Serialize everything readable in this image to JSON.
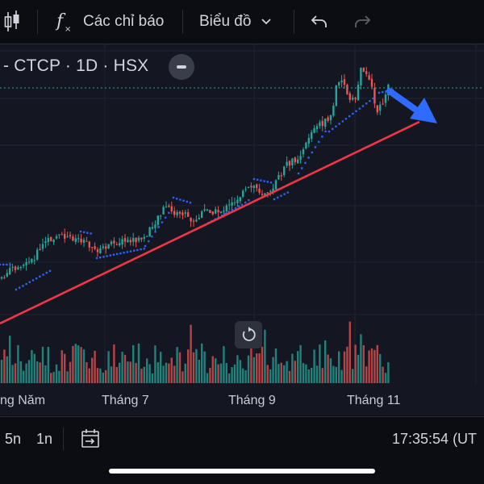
{
  "toolbar": {
    "indicators_label": "Các chỉ báo",
    "chart_type_label": "Biểu đồ",
    "icons": [
      "candlestick-icon",
      "function-icon",
      "chevron-down-icon",
      "undo-icon",
      "redo-icon"
    ]
  },
  "symbol": {
    "label": "- CTCP · 1D · HSX"
  },
  "x_axis": {
    "labels": [
      "ng Năm",
      "Tháng 7",
      "Tháng 9",
      "Tháng 11"
    ]
  },
  "bottom_bar": {
    "range_5n": "5n",
    "range_1n": "1n",
    "time": "17:35:54 (UT"
  },
  "colors": {
    "up": "#26a69a",
    "down": "#ef5350",
    "trendline": "#f23645",
    "sar": "#2962ff",
    "arrow": "#2f6bff",
    "background": "#141722"
  }
}
